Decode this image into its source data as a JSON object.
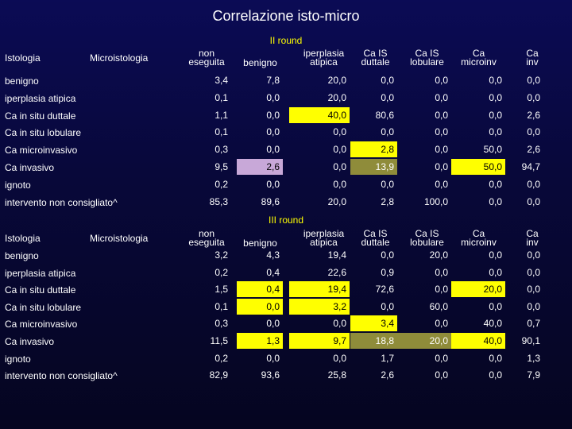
{
  "title": "Correlazione isto-micro",
  "colors": {
    "yellow": "#ffff00",
    "olive": "#8f8c3a",
    "lilac": "#c8a8d8",
    "background": "#0b0b55"
  },
  "headers": {
    "istologia": "Istologia",
    "microistologia": "Microistologia",
    "cols": [
      "non eseguita",
      "benigno",
      "iperplasia atipica",
      "Ca IS duttale",
      "Ca IS lobulare",
      "Ca microinv",
      "Ca inv"
    ]
  },
  "rounds": [
    {
      "label": "II round",
      "rows": [
        {
          "label": "benigno",
          "values": [
            "3,4",
            "7,8",
            "20,0",
            "0,0",
            "0,0",
            "0,0",
            "0,0"
          ],
          "hl": [
            "",
            "",
            "",
            "",
            "",
            "",
            ""
          ]
        },
        {
          "label": "iperplasia atipica",
          "values": [
            "0,1",
            "0,0",
            "20,0",
            "0,0",
            "0,0",
            "0,0",
            "0,0"
          ],
          "hl": [
            "",
            "",
            "",
            "",
            "",
            "",
            ""
          ]
        },
        {
          "label": "Ca in situ duttale",
          "values": [
            "1,1",
            "0,0",
            "40,0",
            "80,6",
            "0,0",
            "0,0",
            "2,6"
          ],
          "hl": [
            "",
            "",
            "yellow",
            "",
            "",
            "",
            ""
          ]
        },
        {
          "label": "Ca in situ lobulare",
          "values": [
            "0,1",
            "0,0",
            "0,0",
            "0,0",
            "0,0",
            "0,0",
            "0,0"
          ],
          "hl": [
            "",
            "",
            "",
            "",
            "",
            "",
            ""
          ]
        },
        {
          "label": "Ca microinvasivo",
          "values": [
            "0,3",
            "0,0",
            "0,0",
            "2,8",
            "0,0",
            "50,0",
            "2,6"
          ],
          "hl": [
            "",
            "",
            "",
            "yellow",
            "",
            "",
            ""
          ]
        },
        {
          "label": "Ca invasivo",
          "values": [
            "9,5",
            "2,6",
            "0,0",
            "13,9",
            "0,0",
            "50,0",
            "94,7"
          ],
          "hl": [
            "",
            "lilac",
            "",
            "olive",
            "",
            "yellow",
            ""
          ]
        },
        {
          "label": "ignoto",
          "values": [
            "0,2",
            "0,0",
            "0,0",
            "0,0",
            "0,0",
            "0,0",
            "0,0"
          ],
          "hl": [
            "",
            "",
            "",
            "",
            "",
            "",
            ""
          ]
        },
        {
          "label": "intervento non consigliato^",
          "values": [
            "85,3",
            "89,6",
            "20,0",
            "2,8",
            "100,0",
            "0,0",
            "0,0"
          ],
          "hl": [
            "",
            "",
            "",
            "",
            "",
            "",
            ""
          ]
        }
      ]
    },
    {
      "label": "III round",
      "rows": [
        {
          "label": "benigno",
          "values": [
            "3,2",
            "4,3",
            "19,4",
            "0,0",
            "20,0",
            "0,0",
            "0,0"
          ],
          "hl": [
            "",
            "",
            "",
            "",
            "",
            "",
            ""
          ]
        },
        {
          "label": "iperplasia atipica",
          "values": [
            "0,2",
            "0,4",
            "22,6",
            "0,9",
            "0,0",
            "0,0",
            "0,0"
          ],
          "hl": [
            "",
            "",
            "",
            "",
            "",
            "",
            ""
          ]
        },
        {
          "label": "Ca in situ duttale",
          "values": [
            "1,5",
            "0,4",
            "19,4",
            "72,6",
            "0,0",
            "20,0",
            "0,0"
          ],
          "hl": [
            "",
            "yellow",
            "yellow",
            "",
            "",
            "yellow",
            ""
          ]
        },
        {
          "label": "Ca in situ lobulare",
          "values": [
            "0,1",
            "0,0",
            "3,2",
            "0,0",
            "60,0",
            "0,0",
            "0,0"
          ],
          "hl": [
            "",
            "yellow",
            "yellow",
            "",
            "",
            "",
            ""
          ]
        },
        {
          "label": "Ca microinvasivo",
          "values": [
            "0,3",
            "0,0",
            "0,0",
            "3,4",
            "0,0",
            "40,0",
            "0,7"
          ],
          "hl": [
            "",
            "",
            "",
            "yellow",
            "",
            "",
            ""
          ]
        },
        {
          "label": "Ca invasivo",
          "values": [
            "11,5",
            "1,3",
            "9,7",
            "18,8",
            "20,0",
            "40,0",
            "90,1"
          ],
          "hl": [
            "",
            "yellow",
            "yellow",
            "olive",
            "olive",
            "yellow",
            ""
          ]
        },
        {
          "label": "ignoto",
          "values": [
            "0,2",
            "0,0",
            "0,0",
            "1,7",
            "0,0",
            "0,0",
            "1,3"
          ],
          "hl": [
            "",
            "",
            "",
            "",
            "",
            "",
            ""
          ]
        },
        {
          "label": "intervento non consigliato^",
          "values": [
            "82,9",
            "93,6",
            "25,8",
            "2,6",
            "0,0",
            "0,0",
            "7,9"
          ],
          "hl": [
            "",
            "",
            "",
            "",
            "",
            "",
            ""
          ]
        }
      ]
    }
  ]
}
